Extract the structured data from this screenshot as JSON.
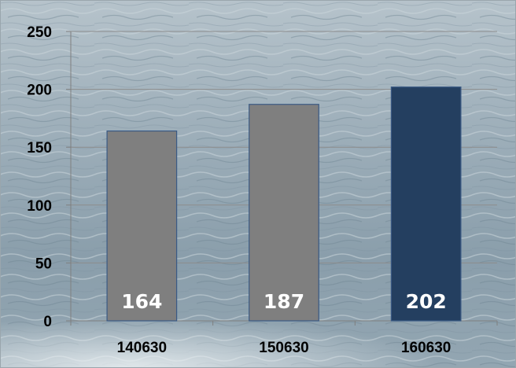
{
  "chart_data": {
    "type": "bar",
    "title": "",
    "xlabel": "",
    "ylabel": "",
    "categories": [
      "140630",
      "150630",
      "160630"
    ],
    "values": [
      164,
      187,
      202
    ],
    "data_labels": [
      "164",
      "187",
      "202"
    ],
    "ylim": [
      0,
      250
    ],
    "yticks": [
      0,
      50,
      100,
      150,
      200,
      250
    ],
    "ytick_labels": [
      "0",
      "50",
      "100",
      "150",
      "200",
      "250"
    ],
    "grid": true,
    "legend": "none",
    "bar_colors": [
      "#7f7f7f",
      "#7f7f7f",
      "#243f60"
    ],
    "bar_border_color": "#3a5a85",
    "gridline_color": "#8c8c8c",
    "background": "sea photo (grey-blue water texture)"
  }
}
